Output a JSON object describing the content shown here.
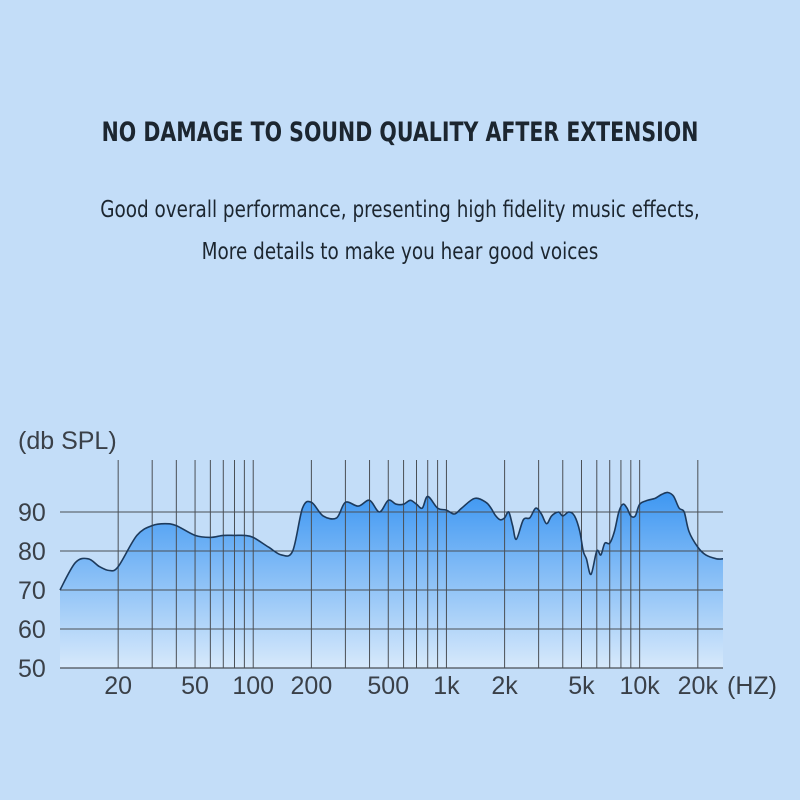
{
  "headline": "NO DAMAGE TO SOUND QUALITY AFTER EXTENSION",
  "subline": [
    "Good overall performance, presenting high fidelity music effects,",
    "More details to make you hear good voices"
  ],
  "colors": {
    "background": "#c3ddf8",
    "fill_top": "#3e97f2",
    "fill_bottom": "#d7e9fb",
    "curve": "#1d3a5c",
    "grid": "#4a4f55"
  },
  "chart_data": {
    "type": "area",
    "ylabel": "(db SPL)",
    "xlabel": "(HZ)",
    "x_scale": "log",
    "xlim": [
      10,
      27000
    ],
    "ylim": [
      50,
      95
    ],
    "grid": true,
    "y_ticks": [
      50,
      60,
      70,
      80,
      90
    ],
    "x_tick_labels": [
      {
        "value": 20,
        "label": "20"
      },
      {
        "value": 50,
        "label": "50"
      },
      {
        "value": 100,
        "label": "100"
      },
      {
        "value": 200,
        "label": "200"
      },
      {
        "value": 500,
        "label": "500"
      },
      {
        "value": 1000,
        "label": "1k"
      },
      {
        "value": 2000,
        "label": "2k"
      },
      {
        "value": 5000,
        "label": "5k"
      },
      {
        "value": 10000,
        "label": "10k"
      },
      {
        "value": 20000,
        "label": "20k"
      }
    ],
    "x_gridlines": [
      20,
      30,
      40,
      50,
      60,
      70,
      80,
      90,
      100,
      200,
      300,
      400,
      500,
      600,
      700,
      800,
      900,
      1000,
      2000,
      3000,
      4000,
      5000,
      6000,
      7000,
      8000,
      9000,
      10000,
      20000
    ],
    "series": [
      {
        "x": [
          10,
          12,
          14,
          16,
          18,
          20,
          25,
          30,
          35,
          40,
          50,
          60,
          70,
          80,
          90,
          100,
          120,
          140,
          160,
          180,
          200,
          230,
          270,
          300,
          350,
          400,
          450,
          500,
          550,
          600,
          650,
          700,
          750,
          800,
          900,
          1000,
          1100,
          1200,
          1400,
          1600,
          1700,
          1800,
          1900,
          2000,
          2100,
          2200,
          2300,
          2500,
          2700,
          2900,
          3100,
          3300,
          3500,
          3800,
          4000,
          4300,
          4600,
          4900,
          5100,
          5300,
          5600,
          6000,
          6300,
          6600,
          7000,
          7400,
          7800,
          8200,
          8600,
          9000,
          9500,
          10000,
          11000,
          12000,
          13000,
          14000,
          15000,
          16000,
          17000,
          18000,
          20000,
          22000,
          25000,
          27000
        ],
        "values": [
          70,
          77,
          78,
          76,
          75,
          76,
          84,
          86.5,
          87,
          86.5,
          84,
          83.5,
          84,
          84,
          84,
          83.5,
          81,
          79,
          80,
          91,
          92.5,
          89,
          88.5,
          92.5,
          91.5,
          93,
          90,
          93,
          92,
          92,
          93,
          92,
          91,
          94,
          91,
          90.5,
          89.5,
          91,
          93.5,
          92.5,
          91,
          89,
          88,
          88.5,
          90,
          86.5,
          83,
          88,
          88.5,
          91,
          89.5,
          87,
          89,
          90,
          89,
          90,
          89,
          85,
          80,
          78,
          74,
          80,
          79,
          82,
          82,
          85,
          90,
          92,
          91,
          89,
          89,
          92,
          93,
          93.5,
          94.5,
          95,
          94,
          91,
          90,
          85,
          81,
          79,
          78,
          78
        ]
      }
    ]
  }
}
